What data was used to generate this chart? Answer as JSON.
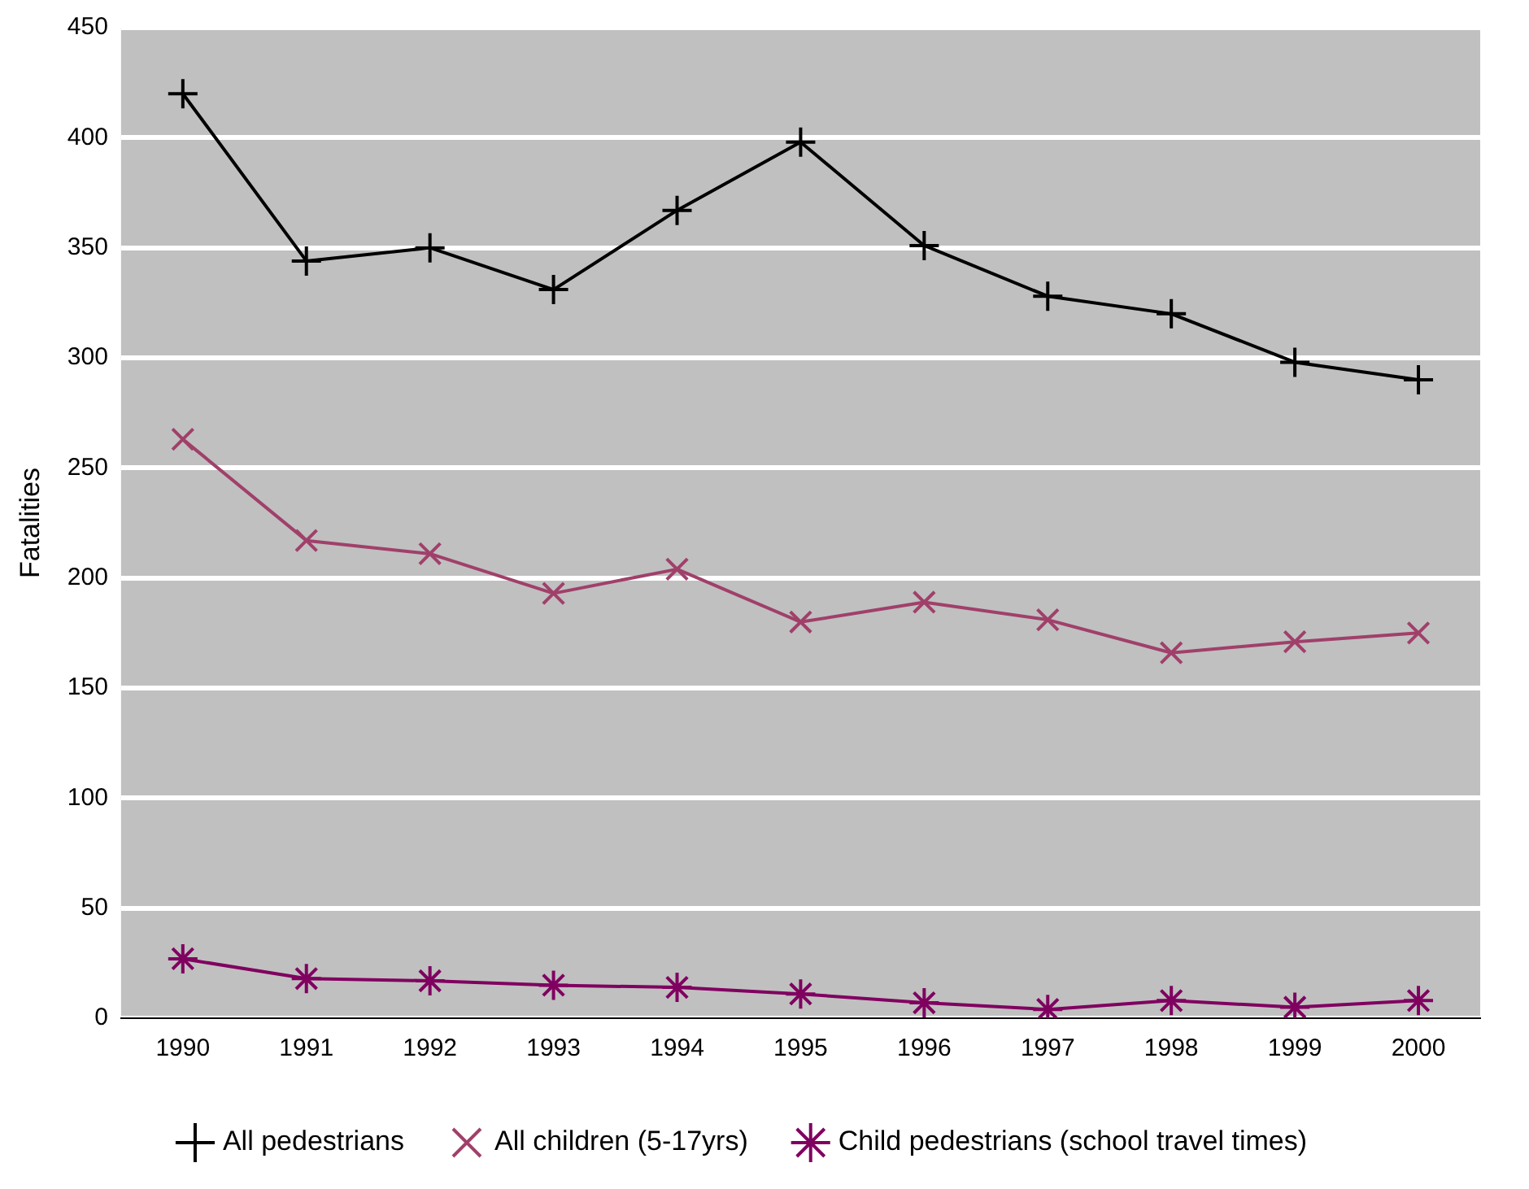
{
  "chart_data": {
    "type": "line",
    "ylabel": "Fatalities",
    "categories": [
      "1990",
      "1991",
      "1992",
      "1993",
      "1994",
      "1995",
      "1996",
      "1997",
      "1998",
      "1999",
      "2000"
    ],
    "series": [
      {
        "name": "All pedestrians",
        "color": "#000000",
        "marker": "cross",
        "values": [
          420,
          344,
          350,
          331,
          367,
          398,
          351,
          328,
          320,
          298,
          290
        ]
      },
      {
        "name": "All children (5-17yrs)",
        "color": "#a0406a",
        "marker": "cross",
        "values": [
          263,
          217,
          211,
          193,
          204,
          180,
          189,
          181,
          166,
          171,
          175
        ]
      },
      {
        "name": "Child pedestrians (school travel times)",
        "color": "#800060",
        "marker": "cross",
        "values": [
          27,
          18,
          17,
          15,
          14,
          11,
          7,
          4,
          8,
          5,
          8
        ]
      }
    ],
    "ylim": [
      0,
      450
    ],
    "yticks": [
      0,
      50,
      100,
      150,
      200,
      250,
      300,
      350,
      400,
      450
    ],
    "grid": "y",
    "legend": "bottom",
    "line_style": "solid"
  }
}
